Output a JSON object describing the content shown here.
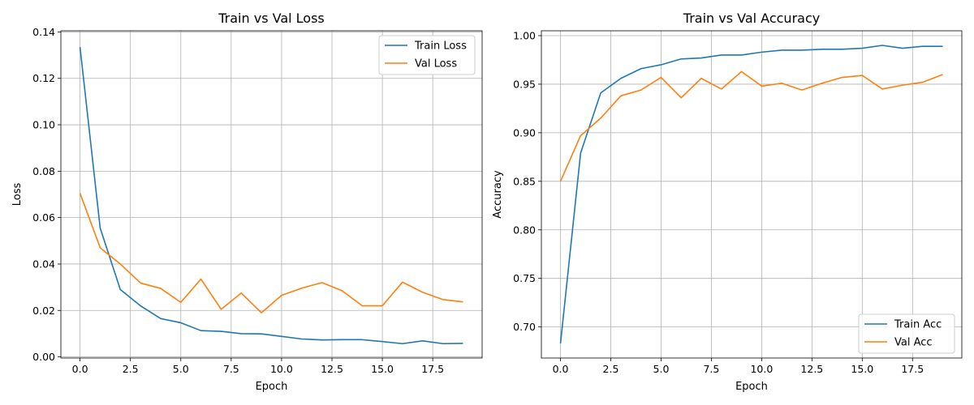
{
  "chart_data": [
    {
      "type": "line",
      "title": "Train vs Val Loss",
      "xlabel": "Epoch",
      "ylabel": "Loss",
      "xlim": [
        -0.95,
        19.95
      ],
      "ylim": [
        -0.0005,
        0.1405
      ],
      "xticks": [
        "0.0",
        "2.5",
        "5.0",
        "7.5",
        "10.0",
        "12.5",
        "15.0",
        "17.5"
      ],
      "yticks": [
        "0.00",
        "0.02",
        "0.04",
        "0.06",
        "0.08",
        "0.10",
        "0.12",
        "0.14"
      ],
      "grid": true,
      "legend": "upper-right",
      "x": [
        0,
        1,
        2,
        3,
        4,
        5,
        6,
        7,
        8,
        9,
        10,
        11,
        12,
        13,
        14,
        15,
        16,
        17,
        18,
        19
      ],
      "series": [
        {
          "name": "Train Loss",
          "color": "#1f77b4",
          "values": [
            0.1335,
            0.0555,
            0.029,
            0.022,
            0.0165,
            0.0147,
            0.0113,
            0.011,
            0.01,
            0.0099,
            0.0088,
            0.0077,
            0.0073,
            0.0074,
            0.0074,
            0.0066,
            0.0057,
            0.0069,
            0.0057,
            0.0058
          ]
        },
        {
          "name": "Val Loss",
          "color": "#ff7f0e",
          "values": [
            0.0705,
            0.047,
            0.04,
            0.0318,
            0.0295,
            0.0235,
            0.0335,
            0.0205,
            0.0275,
            0.019,
            0.0265,
            0.0296,
            0.032,
            0.0285,
            0.022,
            0.022,
            0.0322,
            0.0278,
            0.0247,
            0.0237
          ]
        }
      ]
    },
    {
      "type": "line",
      "title": "Train vs Val Accuracy",
      "xlabel": "Epoch",
      "ylabel": "Accuracy",
      "xlim": [
        -0.95,
        19.95
      ],
      "ylim": [
        0.668,
        1.005
      ],
      "xticks": [
        "0.0",
        "2.5",
        "5.0",
        "7.5",
        "10.0",
        "12.5",
        "15.0",
        "17.5"
      ],
      "yticks": [
        "0.70",
        "0.75",
        "0.80",
        "0.85",
        "0.90",
        "0.95",
        "1.00"
      ],
      "grid": true,
      "legend": "lower-right",
      "x": [
        0,
        1,
        2,
        3,
        4,
        5,
        6,
        7,
        8,
        9,
        10,
        11,
        12,
        13,
        14,
        15,
        16,
        17,
        18,
        19
      ],
      "series": [
        {
          "name": "Train Acc",
          "color": "#1f77b4",
          "values": [
            0.683,
            0.879,
            0.941,
            0.956,
            0.966,
            0.97,
            0.976,
            0.977,
            0.98,
            0.98,
            0.983,
            0.985,
            0.985,
            0.986,
            0.986,
            0.987,
            0.99,
            0.987,
            0.989,
            0.989
          ]
        },
        {
          "name": "Val Acc",
          "color": "#ff7f0e",
          "values": [
            0.85,
            0.897,
            0.915,
            0.938,
            0.944,
            0.957,
            0.936,
            0.956,
            0.945,
            0.963,
            0.948,
            0.951,
            0.944,
            0.951,
            0.957,
            0.959,
            0.945,
            0.949,
            0.952,
            0.96
          ]
        }
      ]
    }
  ]
}
